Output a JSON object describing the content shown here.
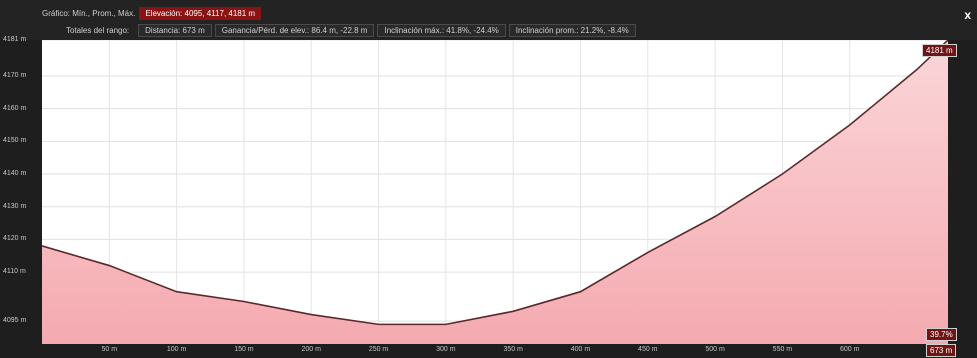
{
  "header": {
    "chart_label": "Gráfico: Mín., Prom., Máx.",
    "elevation_label": "Elevación: 4095, 4117, 4181 m",
    "range_label": "Totales del rango:",
    "distance": "Distancia: 673 m",
    "gain_loss": "Ganancia/Pérd. de elev.: 86.4 m, -22.8 m",
    "max_slope": "Inclinación máx.: 41.8%, -24.4%",
    "avg_slope": "Inclinación prom.: 21.2%, -8.4%",
    "close": "x"
  },
  "badges": {
    "max_elev": "4181 m",
    "grade": "39.7%",
    "distance_end": "673 m"
  },
  "colors": {
    "background": "#1e1e1e",
    "plot": "#ffffff",
    "fill": "#f4aab0",
    "line": "#5a2a2a",
    "accent": "#8a1313"
  },
  "chart_data": {
    "type": "area",
    "title": "",
    "xlabel": "",
    "ylabel": "",
    "xlim": [
      0,
      673
    ],
    "ylim": [
      4088,
      4181
    ],
    "grid": true,
    "x": [
      0,
      50,
      100,
      150,
      200,
      250,
      300,
      350,
      400,
      450,
      500,
      550,
      600,
      650,
      673
    ],
    "y": [
      4118,
      4112,
      4104,
      4101,
      4097,
      4094,
      4094,
      4098,
      4104,
      4116,
      4127,
      4140,
      4155,
      4172,
      4181
    ],
    "x_ticks": [
      {
        "value": 50,
        "label": "50 m"
      },
      {
        "value": 100,
        "label": "100 m"
      },
      {
        "value": 150,
        "label": "150 m"
      },
      {
        "value": 200,
        "label": "200 m"
      },
      {
        "value": 250,
        "label": "250 m"
      },
      {
        "value": 300,
        "label": "300 m"
      },
      {
        "value": 350,
        "label": "350 m"
      },
      {
        "value": 400,
        "label": "400 m"
      },
      {
        "value": 450,
        "label": "450 m"
      },
      {
        "value": 500,
        "label": "500 m"
      },
      {
        "value": 550,
        "label": "550 m"
      },
      {
        "value": 600,
        "label": "600 m"
      }
    ],
    "y_ticks": [
      {
        "value": 4181,
        "label": "4181 m"
      },
      {
        "value": 4170,
        "label": "4170 m"
      },
      {
        "value": 4160,
        "label": "4160 m"
      },
      {
        "value": 4150,
        "label": "4150 m"
      },
      {
        "value": 4140,
        "label": "4140 m"
      },
      {
        "value": 4130,
        "label": "4130 m"
      },
      {
        "value": 4120,
        "label": "4120 m"
      },
      {
        "value": 4110,
        "label": "4110 m"
      },
      {
        "value": 4095,
        "label": "4095 m"
      }
    ]
  }
}
